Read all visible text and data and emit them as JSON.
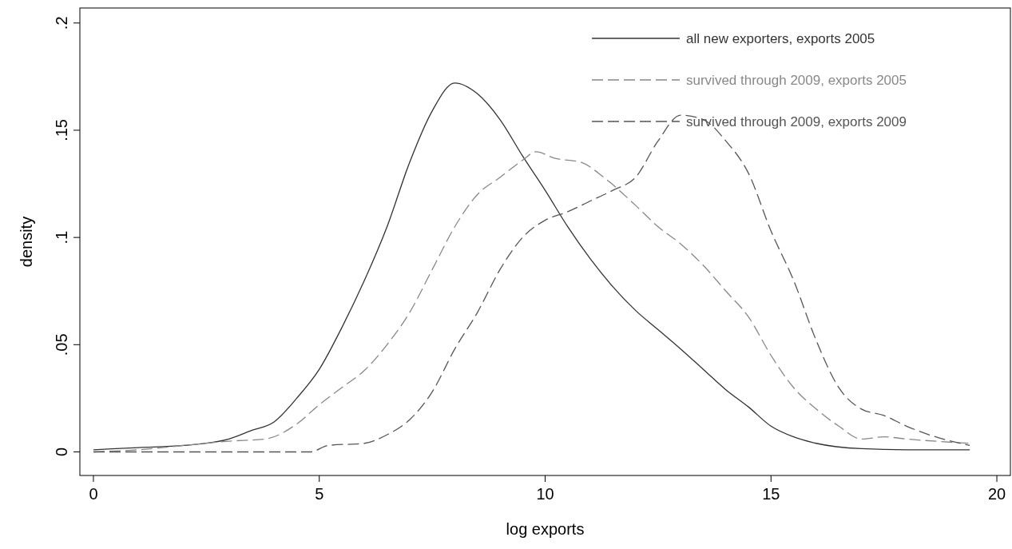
{
  "chart_data": {
    "type": "line",
    "xlabel": "log exports",
    "ylabel": "density",
    "xlim": [
      -0.3,
      20.3
    ],
    "ylim": [
      -0.011,
      0.207
    ],
    "xticks": [
      0,
      5,
      10,
      15,
      20
    ],
    "yticks": [
      0,
      {
        "value": 0.05,
        "label": ".05"
      },
      {
        "value": 0.1,
        "label": ".1"
      },
      {
        "value": 0.15,
        "label": ".15"
      },
      {
        "value": 0.2,
        "label": ".2"
      }
    ],
    "grid": false,
    "legend": "top right",
    "marker": "none",
    "series": [
      {
        "name": "all new exporters, exports 2005",
        "color": "#333333",
        "line_style": "solid",
        "x": [
          0,
          1,
          2,
          3,
          3.5,
          4,
          4.5,
          5,
          5.5,
          6,
          6.5,
          7,
          7.5,
          8,
          8.5,
          9,
          9.5,
          10,
          10.5,
          11,
          11.5,
          12,
          12.5,
          13,
          13.5,
          14,
          14.5,
          15,
          15.5,
          16,
          17,
          18,
          19.4
        ],
        "values": [
          0.001,
          0.002,
          0.003,
          0.006,
          0.01,
          0.014,
          0.025,
          0.0385,
          0.058,
          0.08,
          0.105,
          0.135,
          0.159,
          0.172,
          0.167,
          0.155,
          0.138,
          0.122,
          0.105,
          0.09,
          0.077,
          0.066,
          0.057,
          0.048,
          0.0385,
          0.029,
          0.021,
          0.012,
          0.007,
          0.004,
          0.0015,
          0.001,
          0.001
        ]
      },
      {
        "name": "survived through 2009, exports 2005",
        "color": "#888888",
        "line_style": "dashed",
        "x": [
          0,
          1,
          2,
          3,
          3.8,
          4.5,
          5,
          5.5,
          6,
          6.5,
          7,
          7.5,
          8,
          8.5,
          9,
          9.5,
          9.8,
          10.2,
          10.8,
          11.3,
          12,
          12.5,
          13,
          13.5,
          14,
          14.5,
          15,
          15.5,
          16,
          16.5,
          17,
          17.5,
          18,
          19.4
        ],
        "values": [
          0,
          0.001,
          0.003,
          0.005,
          0.006,
          0.013,
          0.022,
          0.03,
          0.038,
          0.05,
          0.065,
          0.085,
          0.105,
          0.12,
          0.128,
          0.136,
          0.14,
          0.137,
          0.135,
          0.128,
          0.115,
          0.105,
          0.097,
          0.087,
          0.075,
          0.063,
          0.045,
          0.03,
          0.02,
          0.012,
          0.006,
          0.007,
          0.006,
          0.004
        ]
      },
      {
        "name": "survived through 2009, exports 2009",
        "color": "#555555",
        "line_style": "dashed",
        "x": [
          0,
          4,
          4.8,
          5.2,
          6,
          6.5,
          7,
          7.5,
          8,
          8.5,
          9,
          9.5,
          10,
          10.5,
          11,
          11.5,
          12,
          12.5,
          13,
          13.5,
          14,
          14.5,
          15,
          15.5,
          16,
          16.5,
          17,
          17.5,
          18,
          18.5,
          19.4
        ],
        "values": [
          0,
          0,
          0,
          0.003,
          0.004,
          0.008,
          0.015,
          0.028,
          0.048,
          0.065,
          0.085,
          0.1,
          0.108,
          0.112,
          0.117,
          0.122,
          0.128,
          0.145,
          0.157,
          0.155,
          0.145,
          0.13,
          0.103,
          0.08,
          0.052,
          0.03,
          0.02,
          0.017,
          0.012,
          0.008,
          0.003
        ]
      }
    ]
  }
}
